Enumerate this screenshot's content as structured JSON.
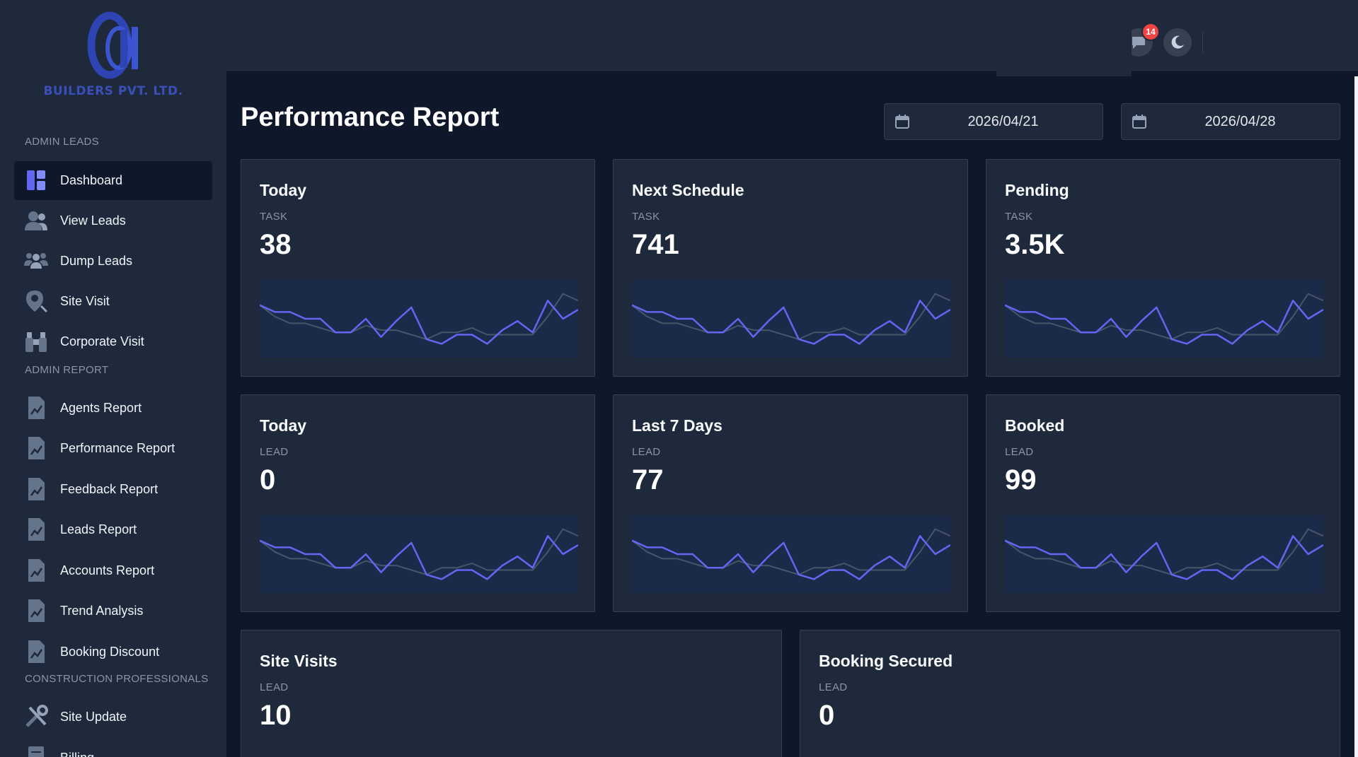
{
  "brand": {
    "text": "BUILDERS PVT. LTD."
  },
  "sidebar": {
    "sections": [
      {
        "label": "ADMIN LEADS"
      },
      {
        "label": "ADMIN REPORT"
      },
      {
        "label": "CONSTRUCTION PROFESSIONALS"
      }
    ],
    "items": [
      {
        "label": "Dashboard",
        "icon": "dashboard-icon",
        "active": true
      },
      {
        "label": "View Leads",
        "icon": "users-icon"
      },
      {
        "label": "Dump Leads",
        "icon": "group-icon"
      },
      {
        "label": "Site Visit",
        "icon": "location-search-icon"
      },
      {
        "label": "Corporate Visit",
        "icon": "binoculars-icon"
      },
      {
        "label": "Agents Report",
        "icon": "report-icon"
      },
      {
        "label": "Performance Report",
        "icon": "report-icon"
      },
      {
        "label": "Feedback Report",
        "icon": "report-icon"
      },
      {
        "label": "Leads Report",
        "icon": "report-icon"
      },
      {
        "label": "Accounts Report",
        "icon": "report-icon"
      },
      {
        "label": "Trend Analysis",
        "icon": "report-icon"
      },
      {
        "label": "Booking Discount",
        "icon": "report-icon"
      },
      {
        "label": "Site Update",
        "icon": "tools-icon"
      },
      {
        "label": "Billing",
        "icon": "billing-icon"
      }
    ]
  },
  "topbar": {
    "notifications_count": "14",
    "icons": [
      "chat-icon",
      "moon-icon"
    ]
  },
  "main": {
    "title": "Performance Report",
    "date_from": "2026/04/21",
    "date_to": "2026/04/28"
  },
  "cards": [
    {
      "title": "Today",
      "sub": "TASK",
      "value": "38"
    },
    {
      "title": "Next Schedule",
      "sub": "TASK",
      "value": "741"
    },
    {
      "title": "Pending",
      "sub": "TASK",
      "value": "3.5K"
    },
    {
      "title": "Today",
      "sub": "LEAD",
      "value": "0"
    },
    {
      "title": "Last 7 Days",
      "sub": "LEAD",
      "value": "77"
    },
    {
      "title": "Booked",
      "sub": "LEAD",
      "value": "99"
    },
    {
      "title": "Site Visits",
      "sub": "LEAD",
      "value": "10"
    },
    {
      "title": "Booking Secured",
      "sub": "LEAD",
      "value": "0"
    }
  ],
  "sparkline": {
    "primary": [
      20,
      17,
      17,
      14,
      14,
      8,
      8,
      14,
      6,
      13,
      19,
      5,
      3,
      7,
      7,
      3,
      9,
      13,
      8,
      22,
      14,
      18
    ],
    "secondary": [
      20,
      15,
      12,
      12,
      10,
      8,
      8,
      11,
      9,
      9,
      7,
      5,
      8,
      8,
      10,
      7,
      7,
      7,
      7,
      15,
      25,
      22
    ],
    "colors": {
      "primary": "#6366f1",
      "secondary": "#475569",
      "fill": "#1c2a4a"
    }
  }
}
